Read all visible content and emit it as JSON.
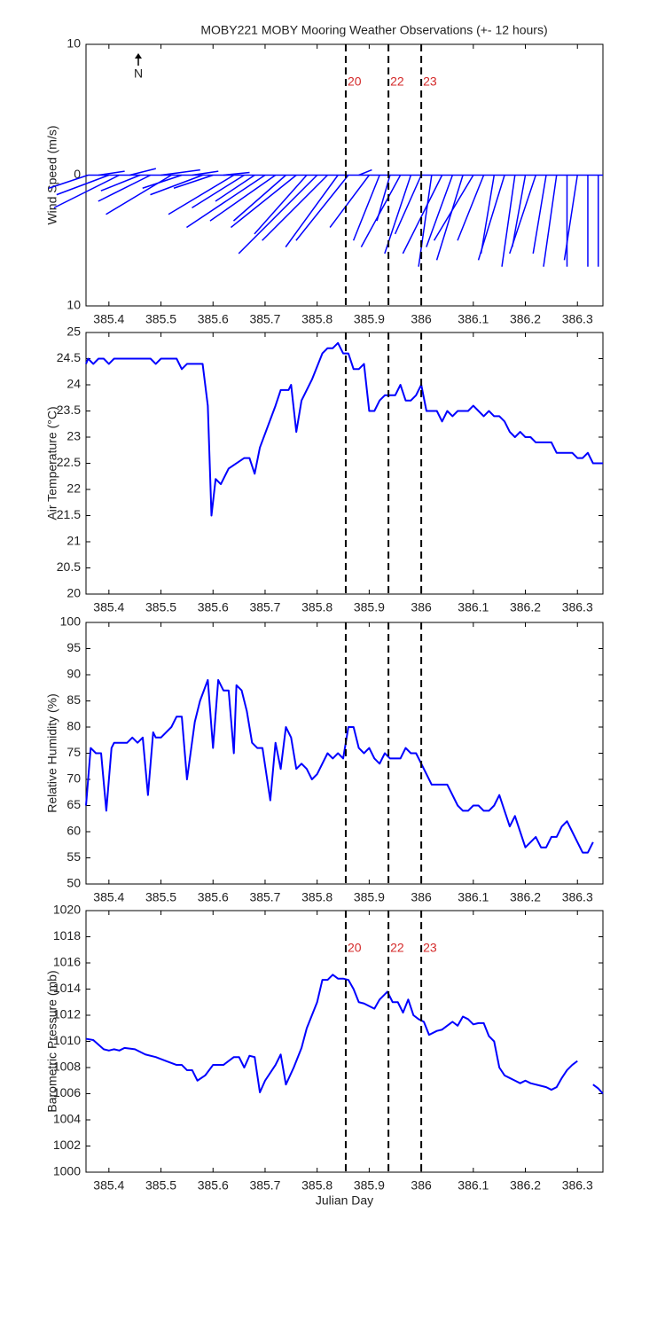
{
  "title": "MOBY221 MOBY Mooring Weather Observations (+- 12 hours)",
  "chart_data": [
    {
      "type": "quiver",
      "y_label": "Wind Speed (m/s)",
      "annotation": "N",
      "color": "#0000ff",
      "xlim": [
        385.356,
        386.349
      ],
      "xticks": [
        385.4,
        385.5,
        385.6,
        385.7,
        385.8,
        385.9,
        386,
        386.1,
        386.2,
        386.3
      ],
      "ylim": [
        -10,
        10
      ],
      "yticks": [
        {
          "value": -10,
          "label": "10"
        },
        0,
        10
      ],
      "vlines": [
        385.855,
        385.937,
        386.0
      ],
      "vline_labels": [
        "20",
        "22",
        "23"
      ],
      "x": [
        385.36,
        385.38,
        385.4,
        385.42,
        385.44,
        385.46,
        385.48,
        385.5,
        385.52,
        385.54,
        385.56,
        385.58,
        385.6,
        385.62,
        385.64,
        385.66,
        385.68,
        385.7,
        385.72,
        385.74,
        385.76,
        385.78,
        385.8,
        385.82,
        385.84,
        385.86,
        385.88,
        385.9,
        385.92,
        385.94,
        385.96,
        385.98,
        386.0,
        386.02,
        386.04,
        386.06,
        386.08,
        386.1,
        386.12,
        386.14,
        386.16,
        386.18,
        386.2,
        386.22,
        386.24,
        386.26,
        386.28,
        386.3,
        386.32,
        386.34
      ],
      "u": [
        -3,
        2,
        -4,
        -5,
        2,
        -3,
        -4,
        3,
        -5,
        -3,
        2,
        -4,
        -3,
        2,
        -5,
        -4,
        -3,
        -6,
        -5,
        -4,
        -5,
        -4,
        -6,
        -5,
        -4,
        -4,
        1,
        -3,
        -2,
        -1,
        -3,
        -2,
        -2,
        -1,
        -3,
        -2,
        -2,
        -3,
        -2,
        -1,
        -2,
        -1,
        -1,
        -2,
        -1,
        -1,
        0,
        -1,
        0,
        0
      ],
      "v": [
        -1,
        0.3,
        -1.5,
        -2.5,
        0.5,
        -1.2,
        -2,
        0.4,
        -3,
        -1,
        0.3,
        -1.5,
        -1,
        0.2,
        -3,
        -2.5,
        -2,
        -4,
        -3.5,
        -3.5,
        -4,
        -4.5,
        -6,
        -5,
        -5.5,
        -5,
        0.4,
        -4,
        -5,
        -3.5,
        -5.5,
        -6,
        -4.5,
        -7,
        -6,
        -5.5,
        -6.5,
        -5,
        -5,
        -6,
        -6.5,
        -7,
        -5.5,
        -6,
        -6,
        -7,
        -7,
        -6.5,
        -7,
        -7
      ]
    },
    {
      "type": "line",
      "y_label": "Air Temperature (°C)",
      "color": "#0000ff",
      "xlim": [
        385.356,
        386.349
      ],
      "xticks": [
        385.4,
        385.5,
        385.6,
        385.7,
        385.8,
        385.9,
        386,
        386.1,
        386.2,
        386.3
      ],
      "ylim": [
        20,
        25
      ],
      "yticks": [
        20,
        20.5,
        21,
        21.5,
        22,
        22.5,
        23,
        23.5,
        24,
        24.5,
        25
      ],
      "vlines": [
        385.855,
        385.937,
        386.0
      ],
      "x": [
        385.356,
        385.36,
        385.37,
        385.38,
        385.39,
        385.4,
        385.41,
        385.48,
        385.49,
        385.5,
        385.53,
        385.54,
        385.55,
        385.58,
        385.59,
        385.597,
        385.605,
        385.615,
        385.63,
        385.66,
        385.67,
        385.68,
        385.69,
        385.72,
        385.73,
        385.745,
        385.75,
        385.76,
        385.77,
        385.79,
        385.81,
        385.82,
        385.83,
        385.84,
        385.85,
        385.86,
        385.87,
        385.88,
        385.89,
        385.9,
        385.91,
        385.92,
        385.93,
        385.95,
        385.96,
        385.97,
        385.98,
        385.99,
        386.0,
        386.01,
        386.03,
        386.04,
        386.05,
        386.06,
        386.07,
        386.09,
        386.1,
        386.11,
        386.12,
        386.13,
        386.14,
        386.15,
        386.16,
        386.17,
        386.18,
        386.19,
        386.2,
        386.21,
        386.22,
        386.25,
        386.26,
        386.29,
        386.3,
        386.31,
        386.32,
        386.33,
        386.349
      ],
      "values": [
        24.4,
        24.5,
        24.4,
        24.5,
        24.5,
        24.4,
        24.5,
        24.5,
        24.4,
        24.5,
        24.5,
        24.3,
        24.4,
        24.4,
        23.6,
        21.5,
        22.2,
        22.1,
        22.4,
        22.6,
        22.6,
        22.3,
        22.8,
        23.6,
        23.9,
        23.9,
        24.0,
        23.1,
        23.7,
        24.1,
        24.6,
        24.7,
        24.7,
        24.8,
        24.6,
        24.6,
        24.3,
        24.3,
        24.4,
        23.5,
        23.5,
        23.7,
        23.8,
        23.8,
        24.0,
        23.7,
        23.7,
        23.8,
        24.0,
        23.5,
        23.5,
        23.3,
        23.5,
        23.4,
        23.5,
        23.5,
        23.6,
        23.5,
        23.4,
        23.5,
        23.4,
        23.4,
        23.3,
        23.1,
        23.0,
        23.1,
        23.0,
        23.0,
        22.9,
        22.9,
        22.7,
        22.7,
        22.6,
        22.6,
        22.7,
        22.5,
        22.5
      ]
    },
    {
      "type": "line",
      "y_label": "Relative Humidity (%)",
      "color": "#0000ff",
      "xlim": [
        385.356,
        386.349
      ],
      "xticks": [
        385.4,
        385.5,
        385.6,
        385.7,
        385.8,
        385.9,
        386,
        386.1,
        386.2,
        386.3
      ],
      "ylim": [
        50,
        100
      ],
      "yticks": [
        50,
        55,
        60,
        65,
        70,
        75,
        80,
        85,
        90,
        95,
        100
      ],
      "vlines": [
        385.855,
        385.937,
        386.0
      ],
      "x": [
        385.356,
        385.365,
        385.375,
        385.385,
        385.395,
        385.405,
        385.41,
        385.435,
        385.445,
        385.455,
        385.465,
        385.475,
        385.485,
        385.49,
        385.5,
        385.52,
        385.53,
        385.54,
        385.55,
        385.565,
        385.575,
        385.59,
        385.6,
        385.61,
        385.62,
        385.63,
        385.64,
        385.645,
        385.655,
        385.665,
        385.675,
        385.685,
        385.695,
        385.71,
        385.72,
        385.73,
        385.74,
        385.75,
        385.76,
        385.77,
        385.78,
        385.79,
        385.8,
        385.82,
        385.83,
        385.84,
        385.85,
        385.86,
        385.87,
        385.88,
        385.89,
        385.9,
        385.91,
        385.92,
        385.93,
        385.94,
        385.96,
        385.97,
        385.98,
        385.99,
        386.01,
        386.02,
        386.05,
        386.07,
        386.08,
        386.09,
        386.1,
        386.11,
        386.12,
        386.13,
        386.14,
        386.15,
        386.16,
        386.17,
        386.18,
        386.19,
        386.2,
        386.22,
        386.23,
        386.24,
        386.25,
        386.26,
        386.27,
        386.28,
        386.29,
        386.31,
        386.32,
        386.33
      ],
      "values": [
        65,
        76,
        75,
        75,
        64,
        76,
        77,
        77,
        78,
        77,
        78,
        67,
        79,
        78,
        78,
        80,
        82,
        82,
        70,
        81,
        85,
        89,
        76,
        89,
        87,
        87,
        75,
        88,
        87,
        83,
        77,
        76,
        76,
        66,
        77,
        72,
        80,
        78,
        72,
        73,
        72,
        70,
        71,
        75,
        74,
        75,
        74,
        80,
        80,
        76,
        75,
        76,
        74,
        73,
        75,
        74,
        74,
        76,
        75,
        75,
        71,
        69,
        69,
        65,
        64,
        64,
        65,
        65,
        64,
        64,
        65,
        67,
        64,
        61,
        63,
        60,
        57,
        59,
        57,
        57,
        59,
        59,
        61,
        62,
        60,
        56,
        56,
        58
      ]
    },
    {
      "type": "line",
      "y_label": "Barometric Pressure (mb)",
      "x_label": "Julian Day",
      "color": "#0000ff",
      "xlim": [
        385.356,
        386.349
      ],
      "xticks": [
        385.4,
        385.5,
        385.6,
        385.7,
        385.8,
        385.9,
        386,
        386.1,
        386.2,
        386.3
      ],
      "ylim": [
        1000,
        1020
      ],
      "yticks": [
        1000,
        1002,
        1004,
        1006,
        1008,
        1010,
        1012,
        1014,
        1016,
        1018,
        1020
      ],
      "vlines": [
        385.855,
        385.937,
        386.0
      ],
      "vline_labels": [
        "20",
        "22",
        "23"
      ],
      "x": [
        385.356,
        385.37,
        385.39,
        385.4,
        385.41,
        385.42,
        385.43,
        385.45,
        385.47,
        385.49,
        385.51,
        385.53,
        385.54,
        385.55,
        385.56,
        385.57,
        385.585,
        385.6,
        385.62,
        385.64,
        385.65,
        385.66,
        385.67,
        385.68,
        385.69,
        385.7,
        385.72,
        385.73,
        385.74,
        385.755,
        385.77,
        385.78,
        385.8,
        385.81,
        385.82,
        385.83,
        385.84,
        385.85,
        385.86,
        385.87,
        385.88,
        385.89,
        385.91,
        385.92,
        385.935,
        385.945,
        385.955,
        385.965,
        385.975,
        385.985,
        385.995,
        386.005,
        386.015,
        386.03,
        386.04,
        386.06,
        386.07,
        386.08,
        386.09,
        386.1,
        386.11,
        386.12,
        386.13,
        386.14,
        386.15,
        386.16,
        386.17,
        386.18,
        386.19,
        386.2,
        386.21,
        386.23,
        386.24,
        386.25,
        386.26,
        386.27,
        386.28,
        386.29,
        386.3,
        386.31,
        386.33,
        386.34,
        386.349
      ],
      "values": [
        1010.2,
        1010.1,
        1009.4,
        1009.3,
        1009.4,
        1009.3,
        1009.5,
        1009.4,
        1009.0,
        1008.8,
        1008.5,
        1008.2,
        1008.2,
        1007.8,
        1007.8,
        1007.0,
        1007.4,
        1008.2,
        1008.2,
        1008.8,
        1008.8,
        1008.0,
        1008.9,
        1008.8,
        1006.1,
        1007.0,
        1008.2,
        1009.0,
        1006.7,
        1008.0,
        1009.5,
        1011.0,
        1013.0,
        1014.7,
        1014.7,
        1015.1,
        1014.8,
        1014.8,
        1014.7,
        1014.0,
        1013.0,
        1012.9,
        1012.5,
        1013.2,
        1013.8,
        1013.0,
        1013.0,
        1012.2,
        1013.2,
        1012.0,
        1011.7,
        1011.5,
        1010.5,
        1010.8,
        1010.9,
        1011.5,
        1011.2,
        1011.9,
        1011.7,
        1011.3,
        1011.4,
        1011.4,
        1010.4,
        1010.0,
        1008.0,
        1007.4,
        1007.2,
        1007.0,
        1006.8,
        1007.0,
        1006.8,
        1006.6,
        1006.5,
        1006.3,
        1006.5,
        1007.2,
        1007.8,
        1008.2,
        1008.5,
        null,
        1006.7,
        1006.4,
        1006.0
      ]
    }
  ]
}
